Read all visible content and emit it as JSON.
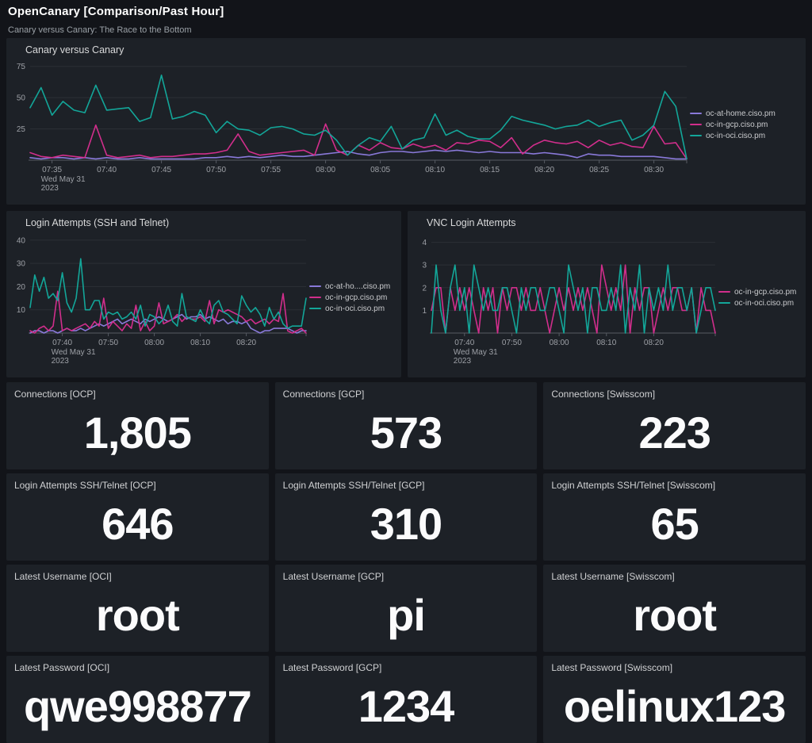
{
  "header": {
    "title": "OpenCanary [Comparison/Past Hour]",
    "subtitle": "Canary versus Canary: The Race to the Bottom"
  },
  "colors": {
    "purple": "#8979d9",
    "magenta": "#d12e8c",
    "teal": "#13a699",
    "panel_bg": "#1d2127",
    "page_bg": "#121419"
  },
  "chart_data": [
    {
      "type": "line",
      "title": "Canary versus Canary",
      "x_range": [
        "07:33",
        "08:33"
      ],
      "x_unit": "minutes",
      "ylim": [
        0,
        78
      ],
      "y_ticks": [
        25,
        50,
        75
      ],
      "grid": "horizontal",
      "legend_position": "right",
      "x_ticks": [
        {
          "idx": 2,
          "label": "07:35",
          "date": [
            "Wed May 31",
            "2023"
          ]
        },
        {
          "idx": 7,
          "label": "07:40"
        },
        {
          "idx": 12,
          "label": "07:45"
        },
        {
          "idx": 17,
          "label": "07:50"
        },
        {
          "idx": 22,
          "label": "07:55"
        },
        {
          "idx": 27,
          "label": "08:00"
        },
        {
          "idx": 32,
          "label": "08:05"
        },
        {
          "idx": 37,
          "label": "08:10"
        },
        {
          "idx": 42,
          "label": "08:15"
        },
        {
          "idx": 47,
          "label": "08:20"
        },
        {
          "idx": 52,
          "label": "08:25"
        },
        {
          "idx": 57,
          "label": "08:30"
        }
      ],
      "series": [
        {
          "name": "oc-at-home.ciso.pm",
          "color_key": "purple",
          "values": [
            2,
            1,
            2,
            2,
            1,
            2,
            1,
            2,
            1,
            1,
            2,
            1,
            1,
            1,
            1,
            1,
            2,
            2,
            3,
            2,
            3,
            2,
            3,
            4,
            3,
            3,
            4,
            5,
            6,
            7,
            5,
            4,
            6,
            7,
            7,
            6,
            7,
            8,
            7,
            8,
            7,
            6,
            7,
            6,
            6,
            6,
            5,
            6,
            5,
            4,
            2,
            5,
            4,
            4,
            3,
            3,
            3,
            3,
            2,
            1,
            1
          ]
        },
        {
          "name": "oc-in-gcp.ciso.pm",
          "color_key": "magenta",
          "values": [
            6,
            3,
            2,
            4,
            3,
            2,
            28,
            4,
            2,
            3,
            4,
            2,
            3,
            3,
            4,
            5,
            5,
            6,
            8,
            21,
            7,
            4,
            5,
            6,
            7,
            8,
            4,
            29,
            8,
            4,
            12,
            8,
            14,
            10,
            9,
            13,
            10,
            12,
            8,
            14,
            13,
            16,
            15,
            10,
            18,
            5,
            12,
            16,
            14,
            13,
            15,
            10,
            16,
            12,
            14,
            11,
            10,
            27,
            13,
            14,
            1
          ]
        },
        {
          "name": "oc-in-oci.ciso.pm",
          "color_key": "teal",
          "values": [
            42,
            58,
            36,
            47,
            40,
            38,
            60,
            40,
            41,
            42,
            31,
            34,
            68,
            33,
            35,
            39,
            36,
            22,
            31,
            25,
            24,
            20,
            26,
            27,
            25,
            21,
            20,
            24,
            16,
            4,
            12,
            18,
            15,
            27,
            9,
            16,
            18,
            37,
            20,
            24,
            19,
            17,
            17,
            24,
            35,
            32,
            30,
            28,
            25,
            27,
            28,
            32,
            27,
            30,
            32,
            16,
            20,
            28,
            55,
            43,
            1
          ]
        }
      ]
    },
    {
      "type": "line",
      "title": "Login Attempts (SSH and Telnet)",
      "x_range": [
        "07:33",
        "08:33"
      ],
      "x_unit": "minutes",
      "ylim": [
        0,
        42
      ],
      "y_ticks": [
        10,
        20,
        30,
        40
      ],
      "grid": "horizontal",
      "legend_position": "right",
      "x_ticks": [
        {
          "idx": 7,
          "label": "07:40",
          "date": [
            "Wed May 31",
            "2023"
          ]
        },
        {
          "idx": 17,
          "label": "07:50"
        },
        {
          "idx": 27,
          "label": "08:00"
        },
        {
          "idx": 37,
          "label": "08:10"
        },
        {
          "idx": 47,
          "label": "08:20"
        }
      ],
      "series": [
        {
          "name": "oc-at-home.ciso.pm",
          "display": "oc-at-ho....ciso.pm",
          "color_key": "purple",
          "values": [
            0,
            1,
            1,
            0,
            1,
            1,
            0,
            1,
            2,
            1,
            1,
            2,
            1,
            2,
            3,
            4,
            3,
            4,
            5,
            6,
            4,
            5,
            6,
            5,
            4,
            6,
            5,
            6,
            7,
            6,
            5,
            6,
            7,
            8,
            6,
            7,
            7,
            8,
            6,
            7,
            6,
            5,
            6,
            4,
            5,
            5,
            4,
            5,
            2,
            1,
            0,
            1,
            1,
            2,
            2,
            2,
            2,
            1,
            0,
            1,
            1
          ]
        },
        {
          "name": "oc-in-gcp.ciso.pm",
          "color_key": "magenta",
          "values": [
            1,
            0,
            2,
            3,
            1,
            3,
            18,
            1,
            2,
            1,
            2,
            3,
            4,
            2,
            5,
            3,
            15,
            2,
            5,
            3,
            1,
            4,
            2,
            12,
            1,
            5,
            1,
            3,
            13,
            4,
            5,
            6,
            8,
            5,
            7,
            6,
            6,
            7,
            5,
            14,
            4,
            10,
            9,
            10,
            9,
            8,
            7,
            5,
            6,
            4,
            5,
            6,
            4,
            6,
            5,
            17,
            1,
            0,
            1,
            2,
            0
          ]
        },
        {
          "name": "oc-in-oci.ciso.pm",
          "color_key": "teal",
          "values": [
            11,
            25,
            18,
            24,
            15,
            17,
            14,
            26,
            13,
            9,
            15,
            32,
            10,
            10,
            14,
            14,
            6,
            9,
            8,
            9,
            6,
            7,
            9,
            6,
            12,
            3,
            8,
            7,
            4,
            6,
            12,
            5,
            3,
            17,
            7,
            6,
            5,
            10,
            6,
            4,
            12,
            14,
            9,
            8,
            6,
            4,
            16,
            12,
            9,
            11,
            8,
            3,
            11,
            6,
            9,
            4,
            2,
            3,
            3,
            3,
            15
          ]
        }
      ]
    },
    {
      "type": "line",
      "title": "VNC Login Attempts",
      "x_range": [
        "07:33",
        "08:33"
      ],
      "x_unit": "minutes",
      "ylim": [
        0,
        4.3
      ],
      "y_ticks": [
        1,
        2,
        3,
        4
      ],
      "grid": "horizontal",
      "legend_position": "right",
      "x_ticks": [
        {
          "idx": 7,
          "label": "07:40",
          "date": [
            "Wed May 31",
            "2023"
          ]
        },
        {
          "idx": 17,
          "label": "07:50"
        },
        {
          "idx": 27,
          "label": "08:00"
        },
        {
          "idx": 37,
          "label": "08:10"
        },
        {
          "idx": 47,
          "label": "08:20"
        }
      ],
      "series": [
        {
          "name": "oc-in-gcp.ciso.pm",
          "color_key": "magenta",
          "values": [
            1,
            2,
            2,
            0,
            2,
            1,
            2,
            1,
            2,
            1,
            0,
            2,
            1,
            2,
            0,
            2,
            1,
            2,
            2,
            1,
            2,
            1,
            1,
            2,
            1,
            0,
            1,
            2,
            1,
            2,
            1,
            2,
            1,
            2,
            1,
            0,
            3,
            2,
            1,
            2,
            1,
            3,
            0,
            2,
            1,
            2,
            2,
            0,
            1,
            2,
            1,
            2,
            2,
            1,
            1,
            2,
            0,
            2,
            1,
            1,
            0
          ]
        },
        {
          "name": "oc-in-oci.ciso.pm",
          "color_key": "teal",
          "values": [
            0,
            3,
            1,
            0,
            2,
            3,
            1,
            2,
            0,
            3,
            2,
            1,
            2,
            1,
            1,
            2,
            2,
            1,
            0,
            2,
            1,
            2,
            2,
            1,
            1,
            2,
            2,
            1,
            0,
            3,
            2,
            1,
            2,
            0,
            2,
            2,
            1,
            1,
            2,
            1,
            3,
            0,
            2,
            1,
            3,
            0,
            2,
            1,
            2,
            1,
            3,
            1,
            2,
            2,
            1,
            2,
            0,
            1,
            2,
            2,
            1
          ]
        }
      ]
    }
  ],
  "stats": [
    {
      "label": "Connections [OCP]",
      "value": "1,805"
    },
    {
      "label": "Connections [GCP]",
      "value": "573"
    },
    {
      "label": "Connections [Swisscom]",
      "value": "223"
    },
    {
      "label": "Login Attempts SSH/Telnet [OCP]",
      "value": "646"
    },
    {
      "label": "Login Attempts SSH/Telnet [GCP]",
      "value": "310"
    },
    {
      "label": "Login Attempts SSH/Telnet [Swisscom]",
      "value": "65"
    },
    {
      "label": "Latest Username [OCI]",
      "value": "root"
    },
    {
      "label": "Latest Username [GCP]",
      "value": "pi"
    },
    {
      "label": "Latest Username [Swisscom]",
      "value": "root"
    },
    {
      "label": "Latest Password [OCI]",
      "value": "qwe998877"
    },
    {
      "label": "Latest Password [GCP]",
      "value": "1234"
    },
    {
      "label": "Latest Password [Swisscom]",
      "value": "oelinux123"
    }
  ]
}
